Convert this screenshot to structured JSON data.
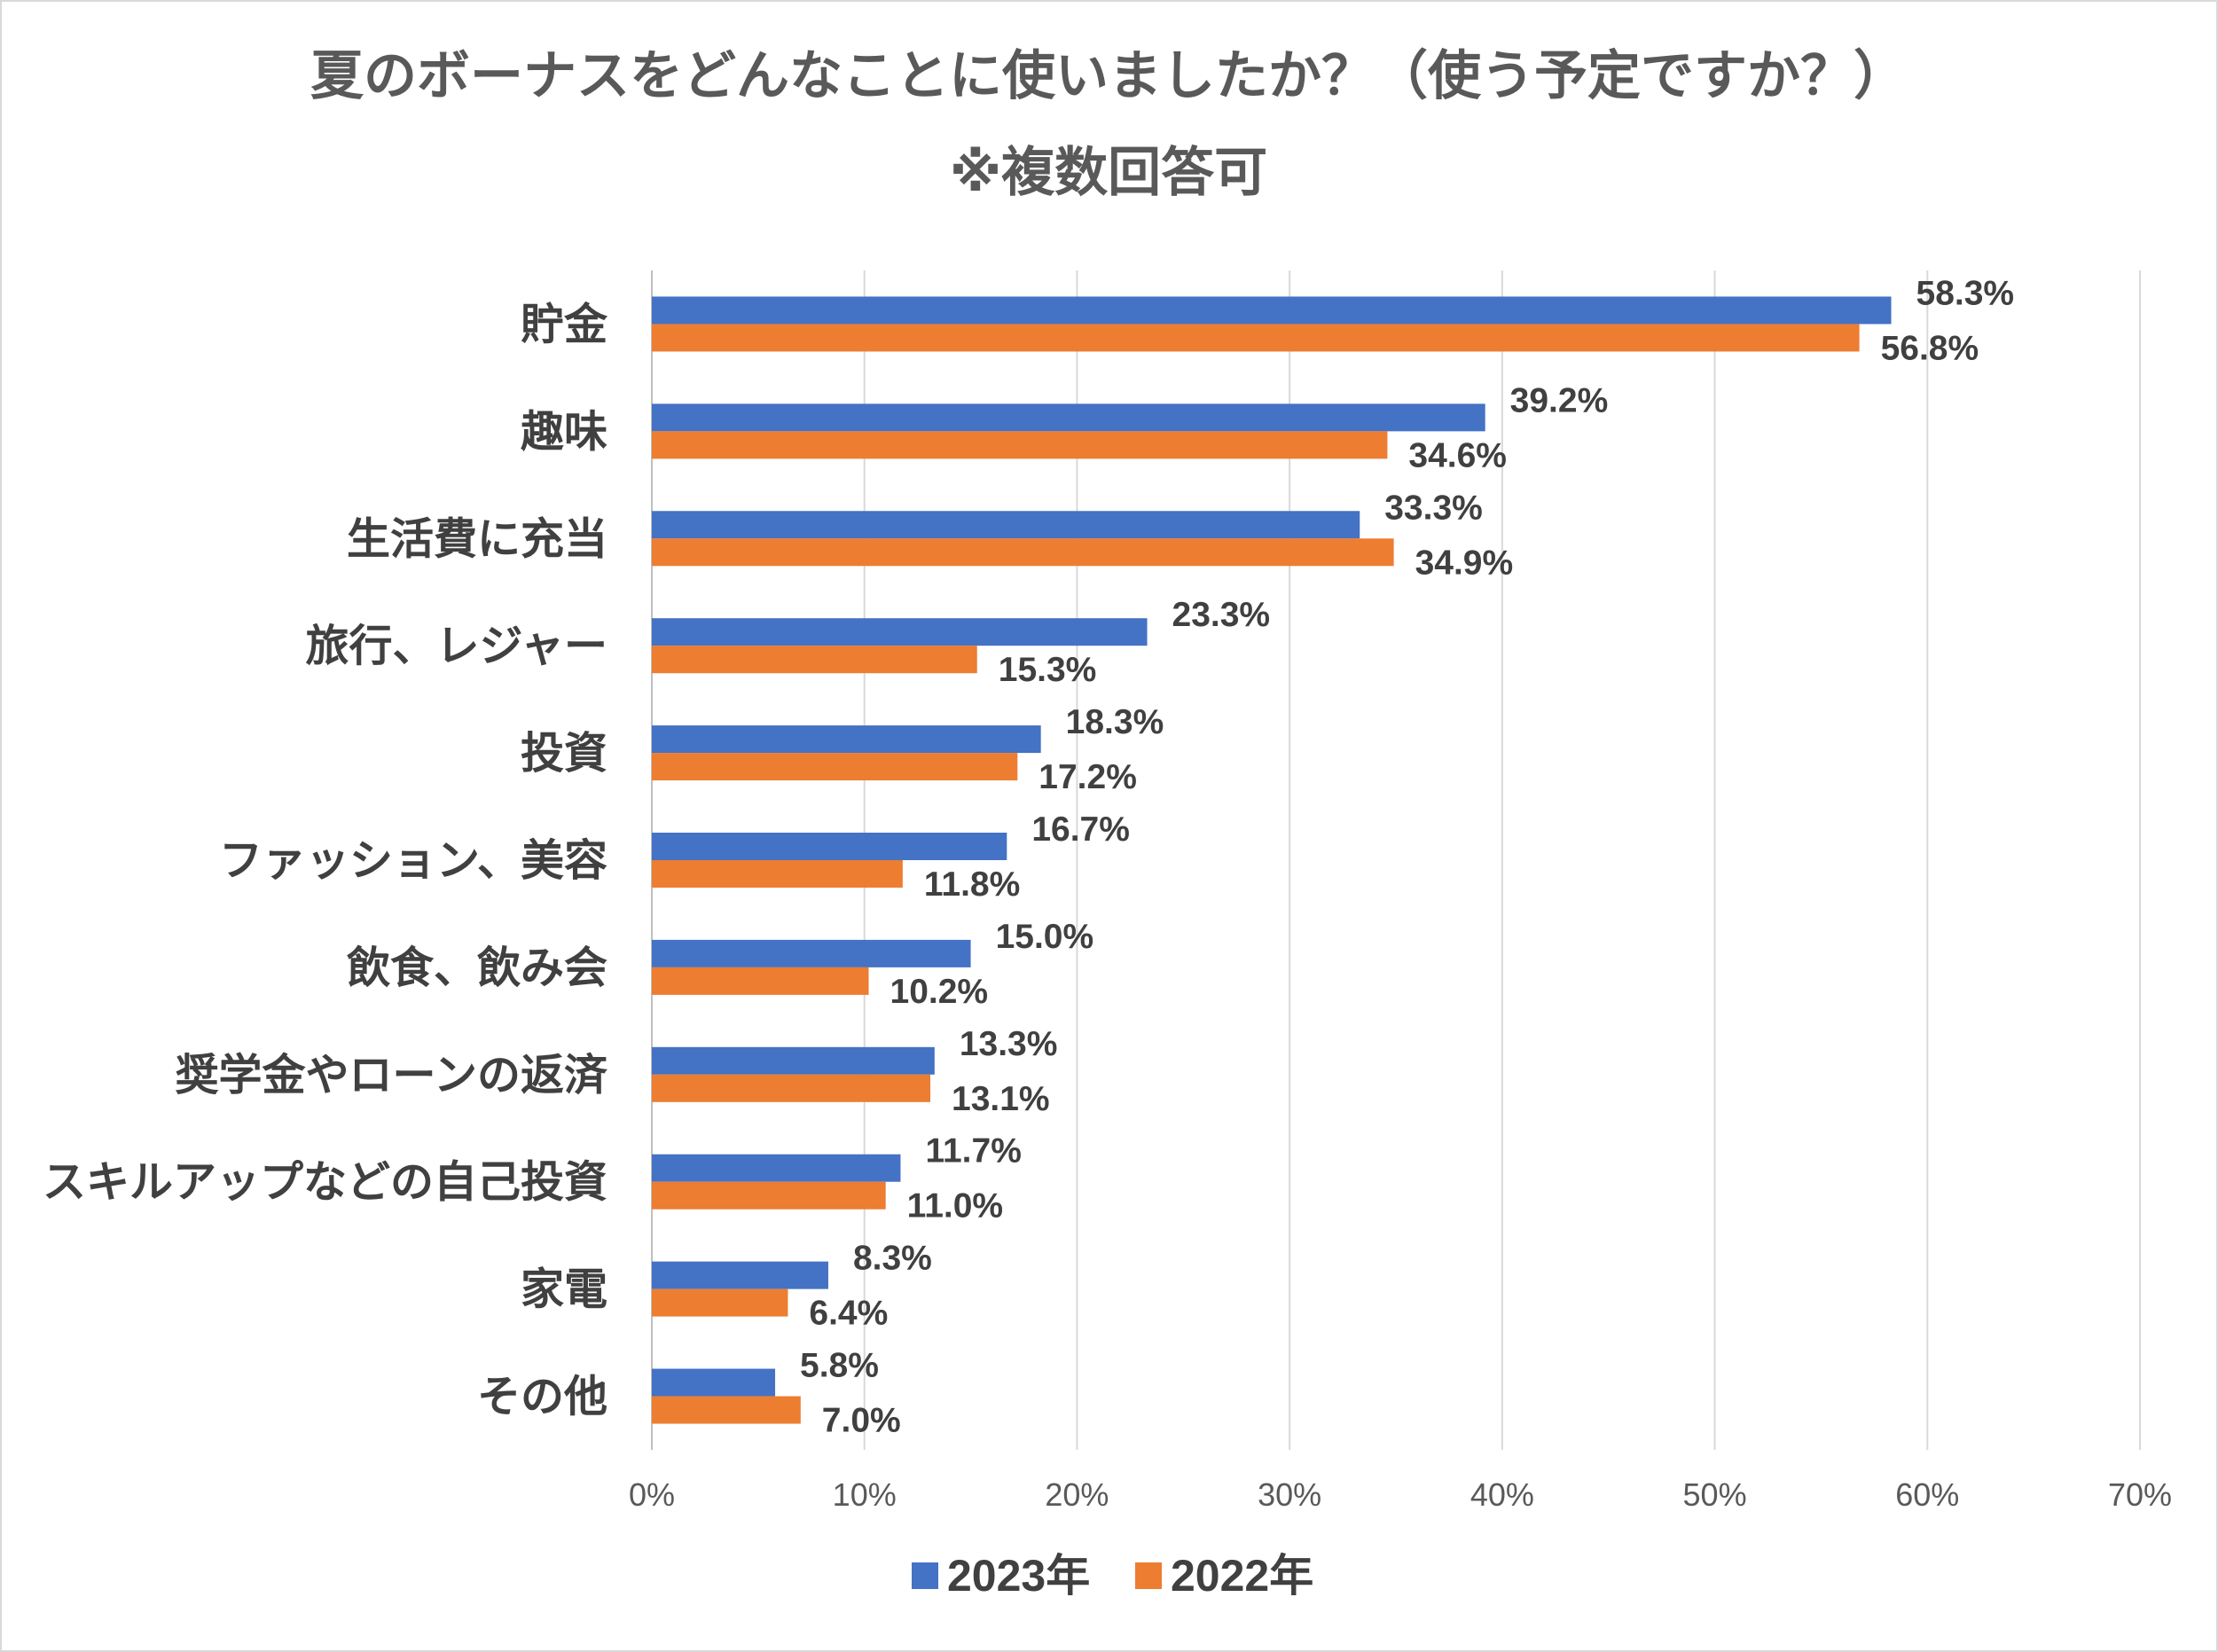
{
  "chart_data": {
    "type": "bar",
    "orientation": "horizontal",
    "title": "夏のボーナスをどんなことに使いましたか？（使う予定ですか？）",
    "subtitle": "※複数回答可",
    "categories": [
      "貯金",
      "趣味",
      "生活費に充当",
      "旅行、レジャー",
      "投資",
      "ファッション、美容",
      "飲食、飲み会",
      "奨学金やローンの返済",
      "スキルアップなどの自己投資",
      "家電",
      "その他"
    ],
    "series": [
      {
        "name": "2023年",
        "color": "#4472C4",
        "values": [
          58.3,
          39.2,
          33.3,
          23.3,
          18.3,
          16.7,
          15.0,
          13.3,
          11.7,
          8.3,
          5.8
        ],
        "labels": [
          "58.3%",
          "39.2%",
          "33.3%",
          "23.3%",
          "18.3%",
          "16.7%",
          "15.0%",
          "13.3%",
          "11.7%",
          "8.3%",
          "5.8%"
        ]
      },
      {
        "name": "2022年",
        "color": "#ED7D31",
        "values": [
          56.8,
          34.6,
          34.9,
          15.3,
          17.2,
          11.8,
          10.2,
          13.1,
          11.0,
          6.4,
          7.0
        ],
        "labels": [
          "56.8%",
          "34.6%",
          "34.9%",
          "15.3%",
          "17.2%",
          "11.8%",
          "10.2%",
          "13.1%",
          "11.0%",
          "6.4%",
          "7.0%"
        ]
      }
    ],
    "x_axis": {
      "min": 0,
      "max": 70,
      "ticks": [
        0,
        10,
        20,
        30,
        40,
        50,
        60,
        70
      ],
      "tick_labels": [
        "0%",
        "10%",
        "20%",
        "30%",
        "40%",
        "50%",
        "60%",
        "70%"
      ]
    },
    "gridlines": true,
    "legend_position": "bottom",
    "xlabel": "",
    "ylabel": ""
  }
}
